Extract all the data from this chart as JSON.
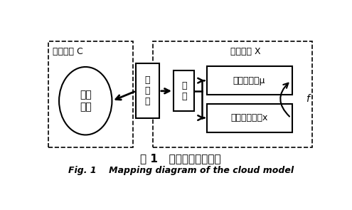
{
  "bg_color": "#ffffff",
  "title_cn": "图 1   云模型映射示意图",
  "title_en": "Fig. 1    Mapping diagram of the cloud model",
  "left_box_label_top": "定性概念 C",
  "ellipse_label": "定性\n概念",
  "cloud_model_label": "云\n模\n型",
  "cloud_drop_label": "云\n滴",
  "right_top_label": "云滴隶属度μ",
  "right_bottom_label": "云滴定量数据x",
  "right_outer_label": "定量数据 X",
  "curve_label": "f",
  "text_color": "#000000"
}
